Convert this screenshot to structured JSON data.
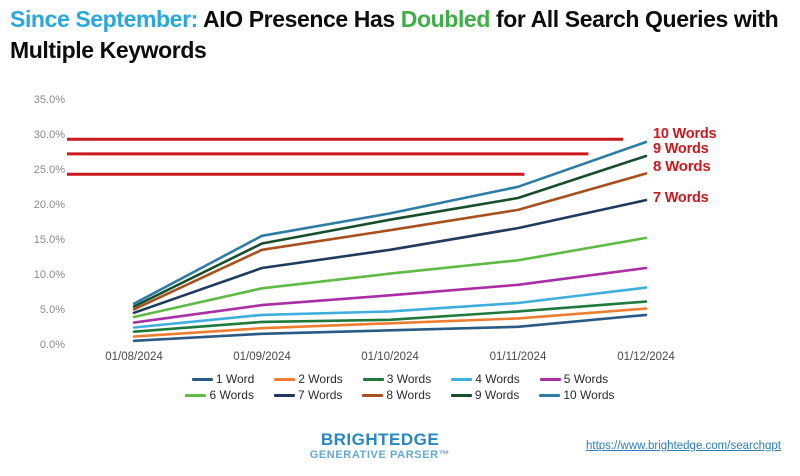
{
  "title": {
    "segments": [
      {
        "text": "Since September:",
        "color": "#29a8e0"
      },
      {
        "text": " AIO Presence Has ",
        "color": "#0d0d0d"
      },
      {
        "text": "Doubled",
        "color": "#3fae49"
      },
      {
        "text": " for All Search Queries with",
        "color": "#0d0d0d"
      }
    ],
    "line2": "Multiple Keywords"
  },
  "chart_data": {
    "type": "line",
    "categories": [
      "01/08/2024",
      "01/09/2024",
      "01/10/2024",
      "01/11/2024",
      "01/12/2024"
    ],
    "series": [
      {
        "name": "1 Word",
        "color": "#2b5a87",
        "values": [
          0.6,
          1.6,
          2.1,
          2.6,
          4.3
        ]
      },
      {
        "name": "2 Words",
        "color": "#ed7d31",
        "values": [
          1.2,
          2.4,
          3.1,
          3.8,
          5.2
        ]
      },
      {
        "name": "3 Words",
        "color": "#1f7b3d",
        "values": [
          1.9,
          3.3,
          3.6,
          4.8,
          6.2
        ]
      },
      {
        "name": "4 Words",
        "color": "#3eaedf",
        "values": [
          2.5,
          4.3,
          4.8,
          6.0,
          8.2
        ]
      },
      {
        "name": "5 Words",
        "color": "#aa2fa6",
        "values": [
          3.2,
          5.7,
          7.1,
          8.6,
          11.0
        ]
      },
      {
        "name": "6 Words",
        "color": "#5fbb46",
        "values": [
          4.0,
          8.1,
          10.2,
          12.1,
          15.3
        ]
      },
      {
        "name": "7 Words",
        "color": "#1e3a5f",
        "values": [
          4.6,
          11.0,
          13.6,
          16.7,
          20.7
        ]
      },
      {
        "name": "8 Words",
        "color": "#a9501f",
        "values": [
          5.1,
          13.6,
          16.4,
          19.3,
          24.5
        ]
      },
      {
        "name": "9 Words",
        "color": "#174e2c",
        "values": [
          5.5,
          14.5,
          17.9,
          21.0,
          27.0
        ]
      },
      {
        "name": "10 Words",
        "color": "#2e7da6",
        "values": [
          5.9,
          15.6,
          18.8,
          22.6,
          29.0
        ]
      }
    ],
    "y_axis": {
      "ticks": [
        {
          "label": "35.0%",
          "value": 35
        },
        {
          "label": "30.0%",
          "value": 30
        },
        {
          "label": "25.0%",
          "value": 25
        },
        {
          "label": "20.0%",
          "value": 20
        },
        {
          "label": "15.0%",
          "value": 15
        },
        {
          "label": "10.0%",
          "value": 10
        },
        {
          "label": "5.0%",
          "value": 5
        },
        {
          "label": "0.0%",
          "value": 0
        }
      ],
      "range": [
        0,
        35
      ]
    },
    "grid": false,
    "legend_position": "bottom",
    "annotation_color": "#c9191e",
    "annotations": [
      {
        "label": "10 Words",
        "bold": false,
        "label_at_pct": 30.0,
        "line_pct": 29.4,
        "line_end_index": 3.82
      },
      {
        "label": "9 Words",
        "bold": false,
        "label_at_pct": 27.8,
        "line_pct": 27.3,
        "line_end_index": 3.55
      },
      {
        "label": "8 Words",
        "bold": true,
        "label_at_pct": 25.5,
        "line_pct": 24.4,
        "line_end_index": 3.05
      },
      {
        "label": "7 Words",
        "bold": false,
        "label_at_pct": 20.8,
        "line_pct": null,
        "line_end_index": null
      }
    ]
  },
  "footer": {
    "logo_line1": "BRIGHTEDGE",
    "logo_line2": "GENERATIVE PARSER™",
    "link": "https://www.brightedge.com/searchgpt"
  }
}
